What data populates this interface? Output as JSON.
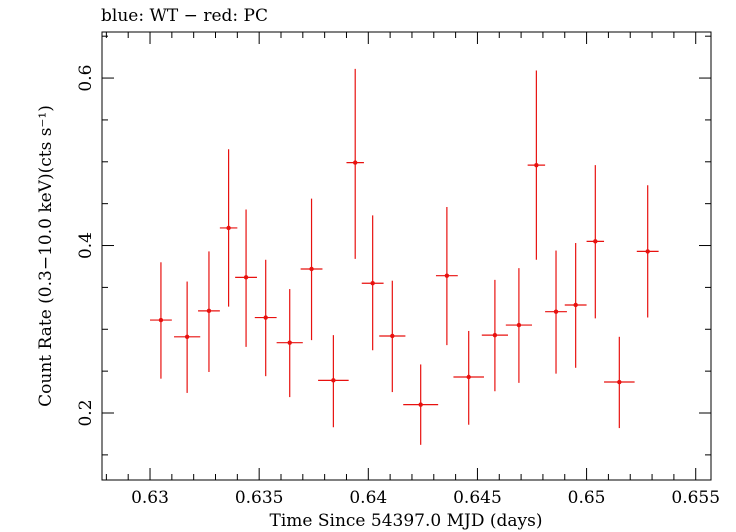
{
  "chart_data": {
    "type": "scatter",
    "title": "blue: WT − red: PC",
    "xlabel": "Time Since 54397.0 MJD (days)",
    "ylabel": "Count Rate (0.3−10.0 keV)(cts s⁻¹)",
    "xlim": [
      0.6278,
      0.6557
    ],
    "ylim": [
      0.12,
      0.655
    ],
    "xticks": [
      "0.63",
      "0.635",
      "0.64",
      "0.645",
      "0.65",
      "0.655"
    ],
    "xtick_values": [
      0.63,
      0.635,
      0.64,
      0.645,
      0.65,
      0.655
    ],
    "yticks": [
      "0.2",
      "0.4",
      "0.6"
    ],
    "ytick_values": [
      0.2,
      0.4,
      0.6
    ],
    "series": [
      {
        "name": "PC",
        "color": "#e8110f",
        "points": [
          {
            "x": 0.6305,
            "y": 0.311,
            "xerr": 0.0005,
            "ylo": 0.241,
            "yhi": 0.38
          },
          {
            "x": 0.6317,
            "y": 0.291,
            "xerr": 0.0006,
            "ylo": 0.224,
            "yhi": 0.357
          },
          {
            "x": 0.6327,
            "y": 0.322,
            "xerr": 0.0005,
            "ylo": 0.249,
            "yhi": 0.393
          },
          {
            "x": 0.6336,
            "y": 0.421,
            "xerr": 0.0004,
            "ylo": 0.327,
            "yhi": 0.515
          },
          {
            "x": 0.6344,
            "y": 0.362,
            "xerr": 0.0005,
            "ylo": 0.279,
            "yhi": 0.443
          },
          {
            "x": 0.6353,
            "y": 0.314,
            "xerr": 0.0005,
            "ylo": 0.244,
            "yhi": 0.383
          },
          {
            "x": 0.6364,
            "y": 0.284,
            "xerr": 0.0006,
            "ylo": 0.219,
            "yhi": 0.348
          },
          {
            "x": 0.6374,
            "y": 0.372,
            "xerr": 0.0005,
            "ylo": 0.287,
            "yhi": 0.456
          },
          {
            "x": 0.6384,
            "y": 0.239,
            "xerr": 0.0007,
            "ylo": 0.183,
            "yhi": 0.293
          },
          {
            "x": 0.6394,
            "y": 0.499,
            "xerr": 0.0004,
            "ylo": 0.384,
            "yhi": 0.611
          },
          {
            "x": 0.6402,
            "y": 0.355,
            "xerr": 0.0005,
            "ylo": 0.275,
            "yhi": 0.436
          },
          {
            "x": 0.6411,
            "y": 0.292,
            "xerr": 0.0006,
            "ylo": 0.225,
            "yhi": 0.358
          },
          {
            "x": 0.6424,
            "y": 0.21,
            "xerr": 0.0008,
            "ylo": 0.162,
            "yhi": 0.258
          },
          {
            "x": 0.6436,
            "y": 0.364,
            "xerr": 0.0005,
            "ylo": 0.281,
            "yhi": 0.446
          },
          {
            "x": 0.6446,
            "y": 0.243,
            "xerr": 0.0007,
            "ylo": 0.186,
            "yhi": 0.298
          },
          {
            "x": 0.6458,
            "y": 0.293,
            "xerr": 0.0006,
            "ylo": 0.226,
            "yhi": 0.359
          },
          {
            "x": 0.6469,
            "y": 0.305,
            "xerr": 0.0006,
            "ylo": 0.236,
            "yhi": 0.373
          },
          {
            "x": 0.6477,
            "y": 0.496,
            "xerr": 0.0004,
            "ylo": 0.383,
            "yhi": 0.609
          },
          {
            "x": 0.6486,
            "y": 0.321,
            "xerr": 0.0005,
            "ylo": 0.247,
            "yhi": 0.394
          },
          {
            "x": 0.6495,
            "y": 0.329,
            "xerr": 0.0005,
            "ylo": 0.254,
            "yhi": 0.403
          },
          {
            "x": 0.6504,
            "y": 0.405,
            "xerr": 0.0004,
            "ylo": 0.313,
            "yhi": 0.496
          },
          {
            "x": 0.6515,
            "y": 0.237,
            "xerr": 0.0007,
            "ylo": 0.182,
            "yhi": 0.291
          },
          {
            "x": 0.6528,
            "y": 0.393,
            "xerr": 0.0005,
            "ylo": 0.314,
            "yhi": 0.472
          }
        ]
      }
    ],
    "grid": false,
    "legend": "none"
  }
}
